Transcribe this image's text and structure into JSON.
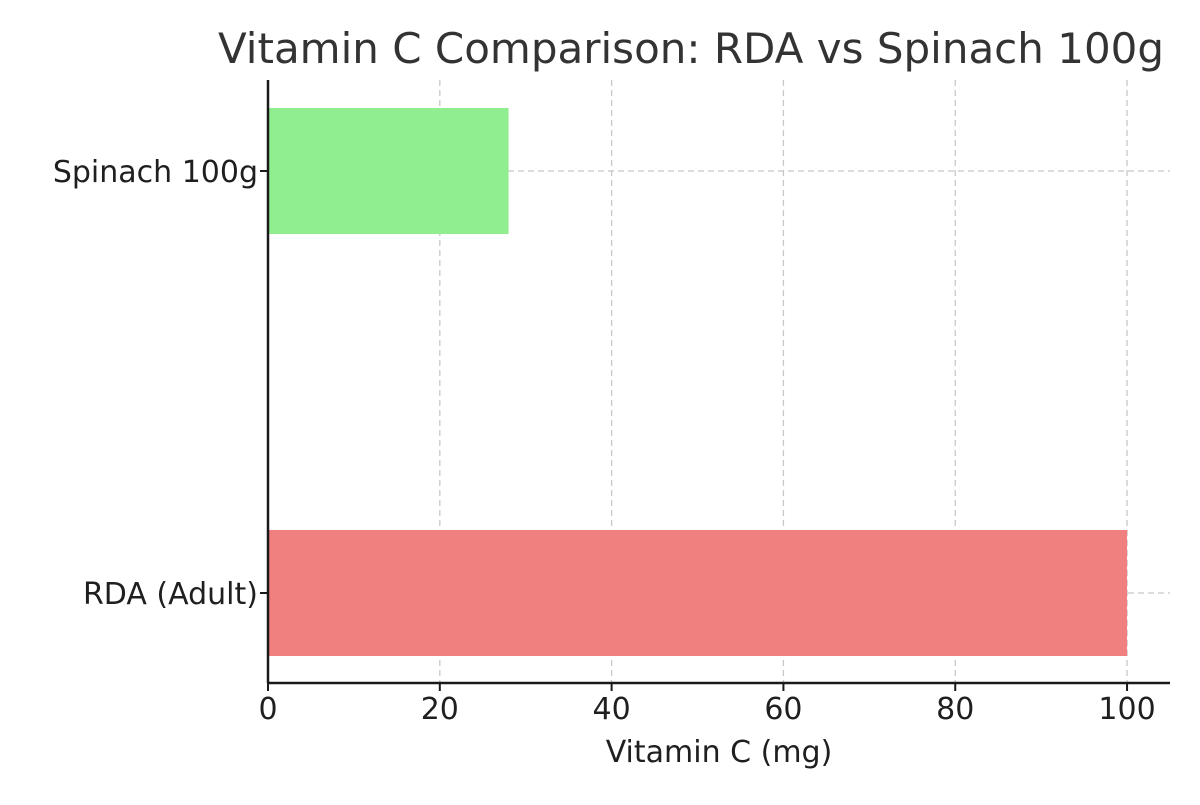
{
  "chart_data": {
    "type": "bar",
    "orientation": "horizontal",
    "title": "Vitamin C Comparison: RDA vs Spinach 100g",
    "xlabel": "Vitamin C (mg)",
    "ylabel": "",
    "categories": [
      "RDA (Adult)",
      "Spinach 100g"
    ],
    "values": [
      100,
      28
    ],
    "colors": [
      "#f08080",
      "#90ee90"
    ],
    "xlim": [
      0,
      105
    ],
    "xticks": [
      0,
      20,
      40,
      60,
      80,
      100
    ],
    "grid": true
  }
}
